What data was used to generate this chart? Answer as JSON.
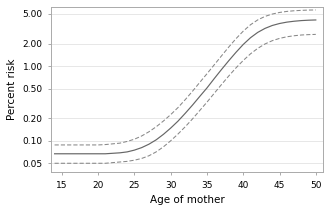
{
  "title": "",
  "xlabel": "Age of mother",
  "ylabel": "Percent risk",
  "x_min": 13.5,
  "x_max": 51,
  "x_ticks": [
    15,
    20,
    25,
    30,
    35,
    40,
    45,
    50
  ],
  "y_ticks": [
    0.05,
    0.1,
    0.2,
    0.5,
    1.0,
    2.0,
    5.0
  ],
  "y_tick_labels": [
    "0.05",
    "0.10",
    "0.20",
    "0.50",
    "1.00",
    "2.00",
    "5.00"
  ],
  "y_min": 0.038,
  "y_max": 6.2,
  "bg_color": "#ffffff",
  "plot_bg_color": "#ffffff",
  "frame_color": "#aaaaaa",
  "grid_color": "#dddddd",
  "line_color": "#666666",
  "ci_color": "#888888",
  "ages": [
    14,
    15,
    16,
    17,
    18,
    19,
    20,
    21,
    22,
    23,
    24,
    25,
    26,
    27,
    28,
    29,
    30,
    31,
    32,
    33,
    34,
    35,
    36,
    37,
    38,
    39,
    40,
    41,
    42,
    43,
    44,
    45,
    46,
    47,
    48,
    49,
    50
  ],
  "risk": [
    0.067,
    0.067,
    0.067,
    0.067,
    0.067,
    0.067,
    0.067,
    0.067,
    0.068,
    0.069,
    0.071,
    0.075,
    0.081,
    0.09,
    0.103,
    0.122,
    0.148,
    0.183,
    0.233,
    0.3,
    0.392,
    0.51,
    0.68,
    0.9,
    1.18,
    1.53,
    1.95,
    2.4,
    2.83,
    3.2,
    3.5,
    3.72,
    3.88,
    3.99,
    4.07,
    4.12,
    4.15
  ],
  "risk_upper": [
    0.088,
    0.088,
    0.088,
    0.088,
    0.088,
    0.088,
    0.088,
    0.089,
    0.091,
    0.093,
    0.098,
    0.105,
    0.116,
    0.132,
    0.154,
    0.184,
    0.224,
    0.278,
    0.355,
    0.46,
    0.604,
    0.79,
    1.04,
    1.37,
    1.8,
    2.33,
    2.94,
    3.58,
    4.16,
    4.63,
    4.98,
    5.23,
    5.4,
    5.51,
    5.58,
    5.63,
    5.65
  ],
  "risk_lower": [
    0.05,
    0.05,
    0.05,
    0.05,
    0.05,
    0.05,
    0.05,
    0.05,
    0.051,
    0.052,
    0.053,
    0.055,
    0.058,
    0.063,
    0.071,
    0.083,
    0.1,
    0.123,
    0.154,
    0.196,
    0.254,
    0.329,
    0.432,
    0.566,
    0.737,
    0.947,
    1.19,
    1.46,
    1.73,
    1.98,
    2.19,
    2.35,
    2.47,
    2.55,
    2.61,
    2.64,
    2.66
  ]
}
